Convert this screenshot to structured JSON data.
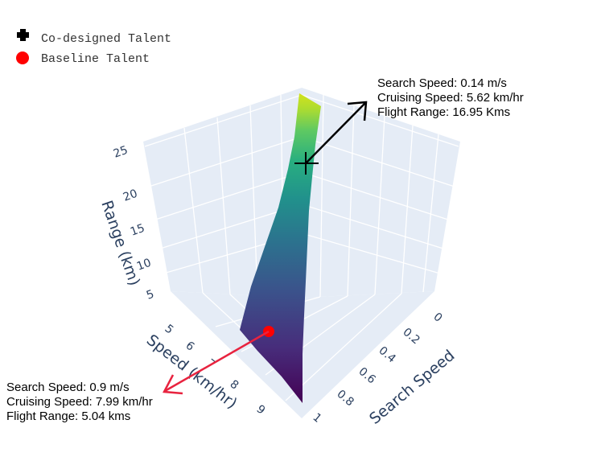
{
  "chart_data": {
    "type": "surface-3d",
    "legend": {
      "placement": "top-left",
      "entries": [
        {
          "name": "Co-designed Talent",
          "marker": "cross",
          "color": "#000000"
        },
        {
          "name": "Baseline Talent",
          "marker": "circle",
          "color": "#ff0000"
        }
      ]
    },
    "axes": {
      "z": {
        "label": "Range (km)",
        "ticks": [
          "5",
          "10",
          "15",
          "20",
          "25"
        ],
        "range": [
          3,
          26
        ]
      },
      "x": {
        "label": "Speed (km/hr)",
        "ticks": [
          "5",
          "6",
          "7",
          "8",
          "9"
        ],
        "range": [
          4.6,
          9.6
        ]
      },
      "y": {
        "label": "Search Speed",
        "ticks": [
          "0",
          "0.2",
          "0.4",
          "0.6",
          "0.8",
          "1"
        ],
        "range": [
          0,
          1
        ]
      }
    },
    "surface": {
      "colorscale": "viridis",
      "description_points": [
        {
          "search_speed": 0.0,
          "speed": 5.0,
          "range": 25
        },
        {
          "search_speed": 1.0,
          "speed": 9.3,
          "range": 3
        }
      ]
    },
    "points": [
      {
        "series": "Co-designed Talent",
        "search_speed": 0.14,
        "speed": 5.62,
        "range": 16.95
      },
      {
        "series": "Baseline Talent",
        "search_speed": 0.9,
        "speed": 7.99,
        "range": 5.04
      }
    ],
    "annotations": [
      {
        "target": "Co-designed Talent",
        "color": "#000000",
        "lines": [
          "Search Speed: 0.14 m/s",
          "Cruising Speed: 5.62 km/hr",
          "Flight Range: 16.95 Kms"
        ]
      },
      {
        "target": "Baseline Talent",
        "color": "#e8233f",
        "lines": [
          "Search Speed: 0.9 m/s",
          "Cruising Speed: 7.99 km/hr",
          "Flight Range: 5.04 kms"
        ]
      }
    ],
    "scene_background": "#e5ecf6",
    "grid_color": "#ffffff"
  }
}
